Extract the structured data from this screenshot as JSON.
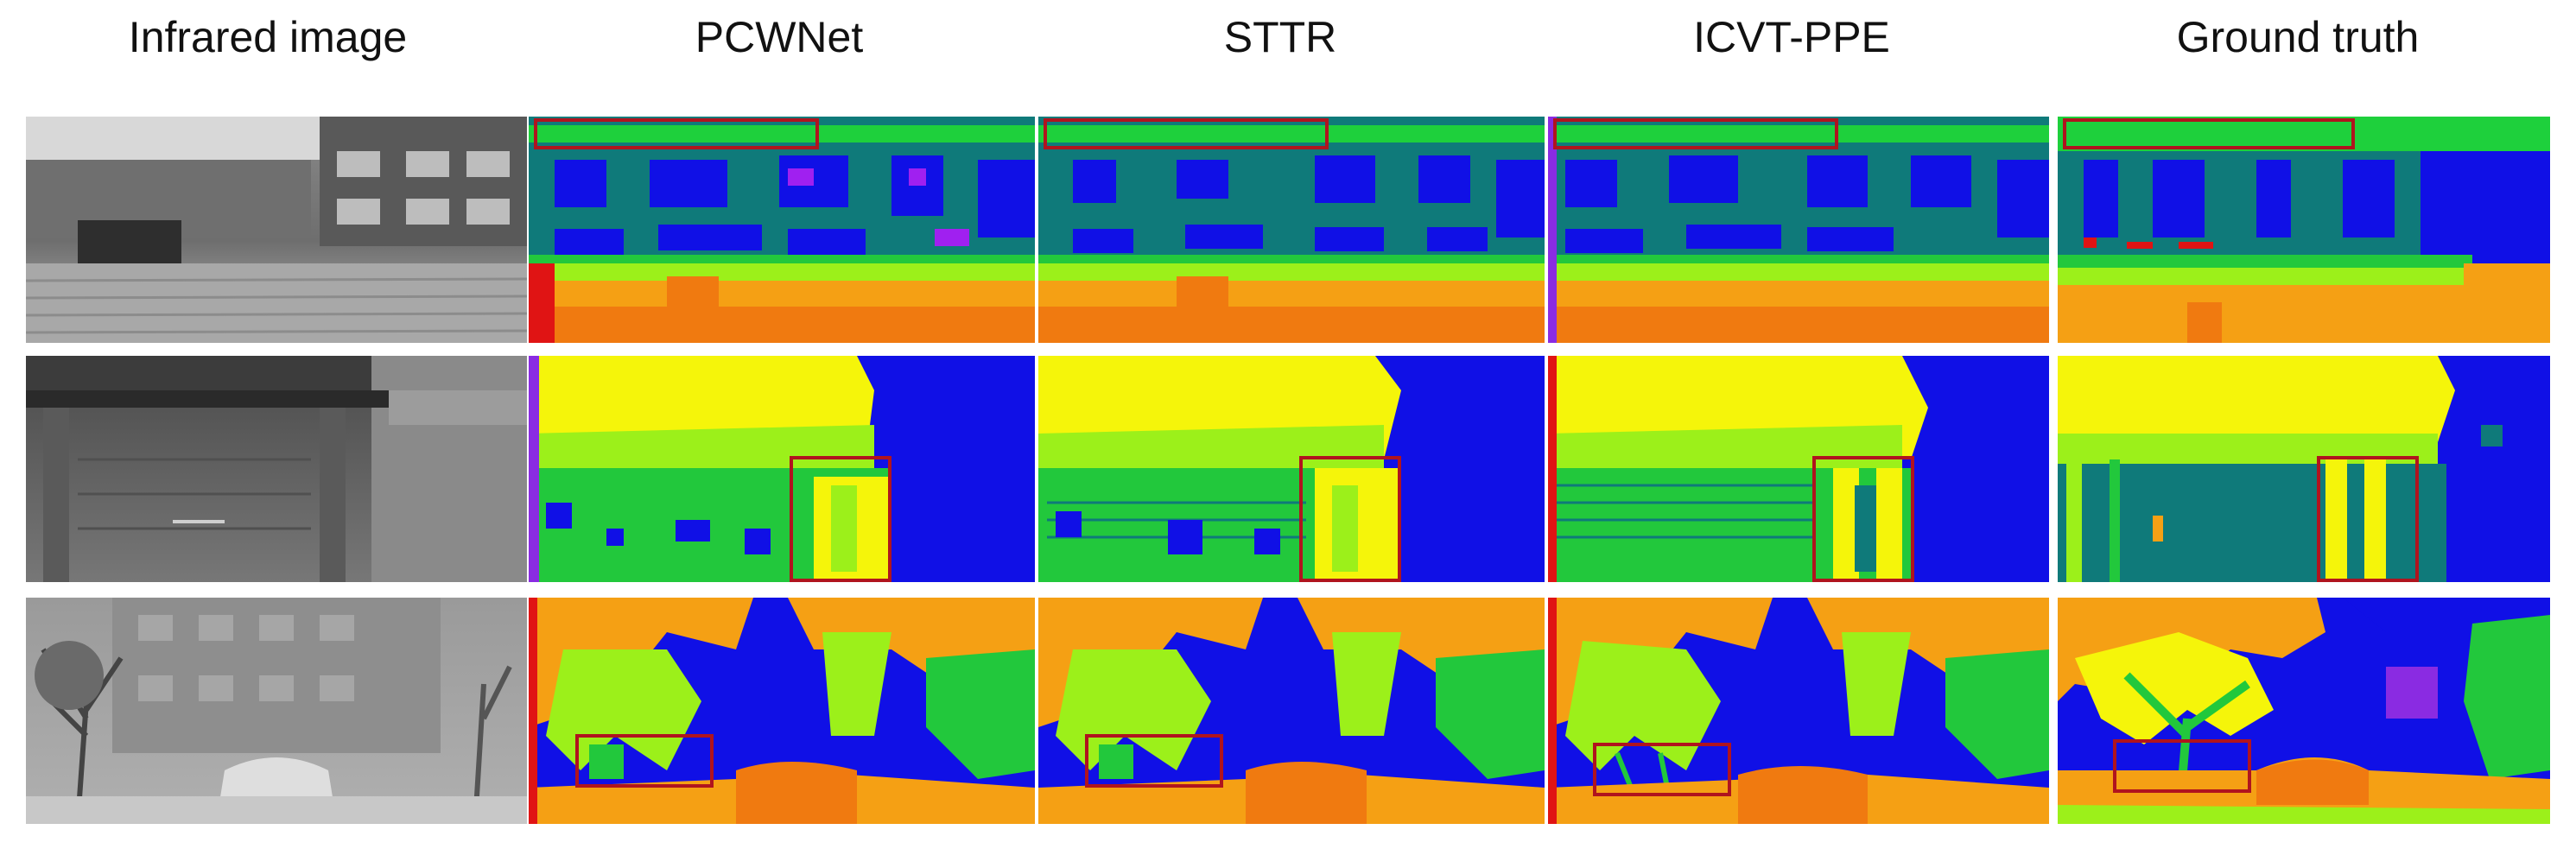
{
  "columns": [
    {
      "id": "infrared",
      "label": "Infrared image"
    },
    {
      "id": "pcwnet",
      "label": "PCWNet"
    },
    {
      "id": "sttr",
      "label": "STTR"
    },
    {
      "id": "icvt",
      "label": "ICVT-PPE"
    },
    {
      "id": "gt",
      "label": "Ground truth"
    }
  ],
  "rows": [
    {
      "id": "row-1-building-stairs"
    },
    {
      "id": "row-2-entrance"
    },
    {
      "id": "row-3-trees-cars"
    }
  ],
  "colormap": {
    "blue": "#1010e6",
    "teal": "#0f7a7a",
    "green": "#22c83c",
    "lime": "#9cf01a",
    "yellow": "#f5f50a",
    "orange": "#f5a014",
    "dark_orange": "#f07a10",
    "red": "#e01414",
    "purple": "#8a2be2",
    "highlight_box": "#b0141e"
  }
}
